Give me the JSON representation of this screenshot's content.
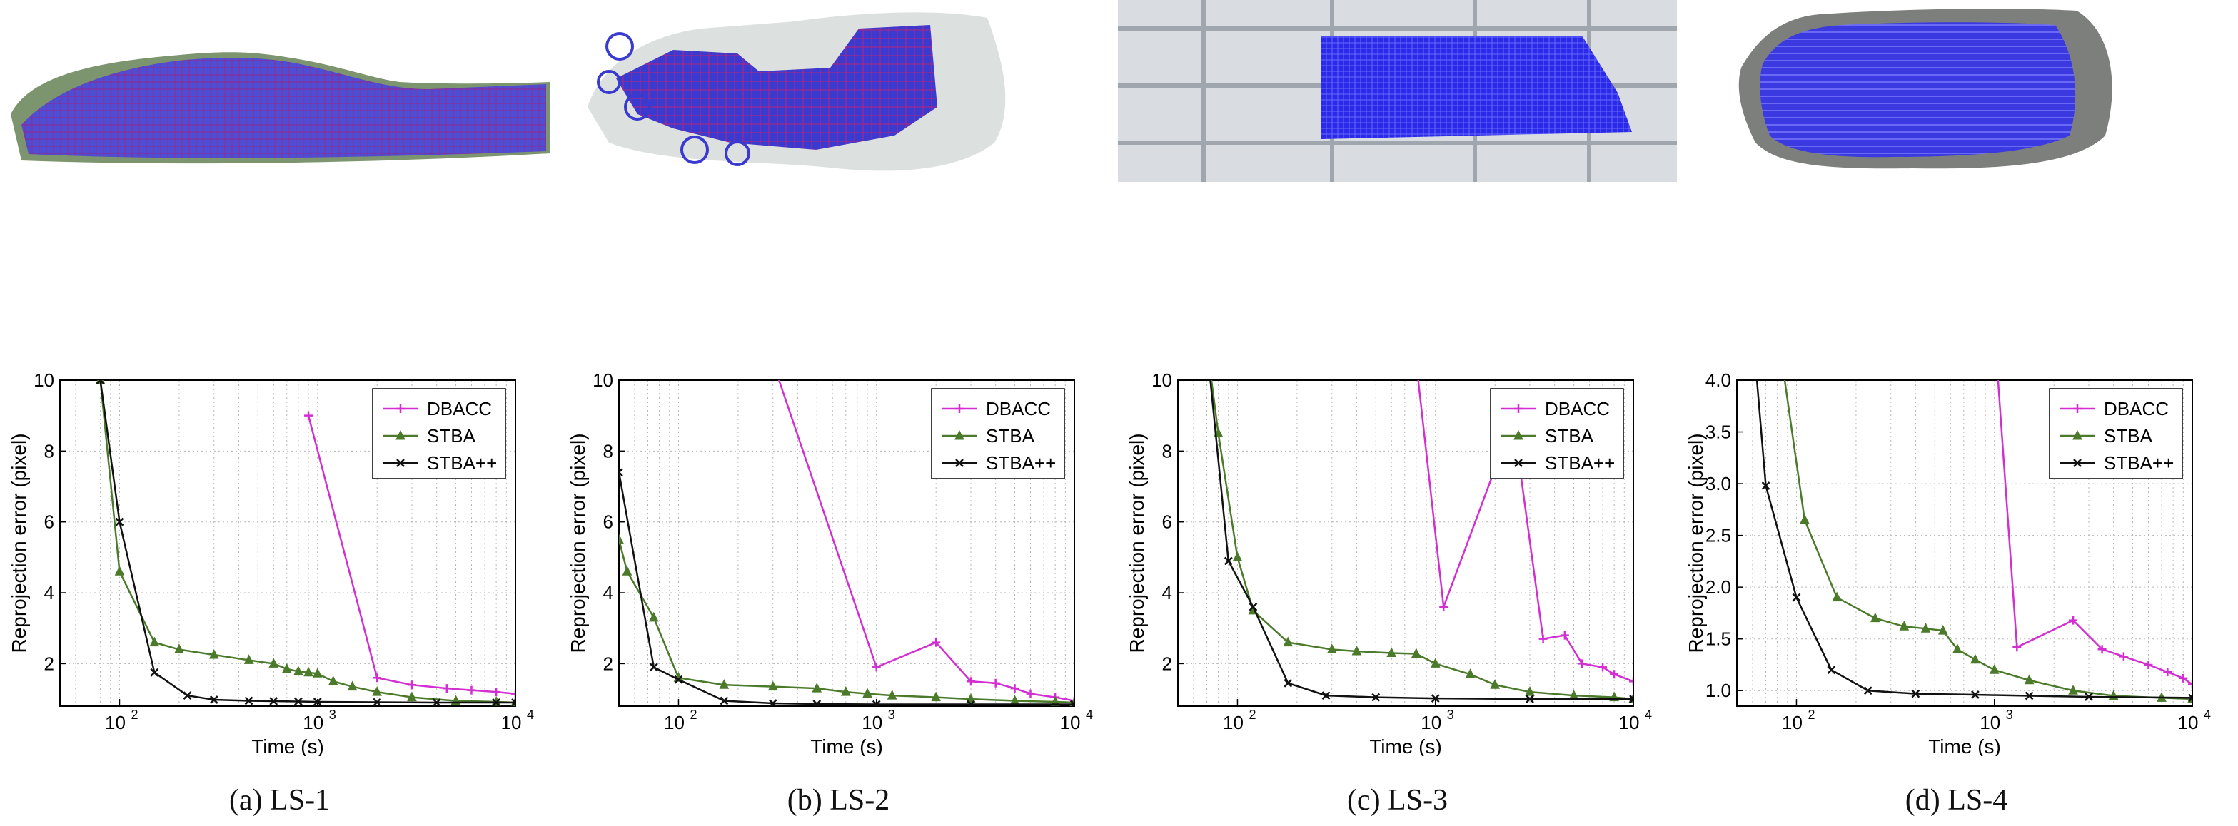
{
  "chart_data": [
    {
      "type": "line",
      "caption": "(a) LS-1",
      "xlabel": "Time (s)",
      "ylabel": "Reprojection error (pixel)",
      "xscale": "log",
      "xlim": [
        50,
        10000
      ],
      "ylim": [
        0.8,
        10
      ],
      "yticks": [
        2,
        4,
        6,
        8,
        10
      ],
      "ytick_labels": [
        "2",
        "4",
        "6",
        "8",
        "10"
      ],
      "xticks": [
        100,
        1000,
        10000
      ],
      "xtick_labels": [
        "10",
        "10",
        "10"
      ],
      "xtick_exps": [
        "2",
        "3",
        "4"
      ],
      "grid": true,
      "legend_position": "top-right",
      "series": [
        {
          "name": "DBACC",
          "color": "#d22ed2",
          "marker": "plus",
          "x": [
            900,
            2000,
            3000,
            4500,
            6000,
            8000,
            10000
          ],
          "y": [
            9.0,
            1.6,
            1.4,
            1.3,
            1.25,
            1.2,
            1.15
          ]
        },
        {
          "name": "STBA",
          "color": "#4a7a2a",
          "marker": "triangle",
          "x": [
            60,
            80,
            100,
            150,
            200,
            300,
            450,
            600,
            700,
            800,
            900,
            1000,
            1200,
            1500,
            2000,
            3000,
            5000,
            8000,
            10000
          ],
          "y": [
            12,
            10,
            4.6,
            2.6,
            2.4,
            2.25,
            2.1,
            2.0,
            1.85,
            1.78,
            1.75,
            1.72,
            1.5,
            1.35,
            1.2,
            1.05,
            0.95,
            0.92,
            0.9
          ]
        },
        {
          "name": "STBA++",
          "color": "#111111",
          "marker": "x",
          "x": [
            60,
            80,
            100,
            150,
            220,
            300,
            450,
            600,
            800,
            1000,
            2000,
            4000,
            8000,
            10000
          ],
          "y": [
            12,
            10,
            6.0,
            1.75,
            1.1,
            0.98,
            0.95,
            0.94,
            0.93,
            0.92,
            0.91,
            0.9,
            0.9,
            0.9
          ]
        }
      ]
    },
    {
      "type": "line",
      "caption": "(b) LS-2",
      "xlabel": "Time (s)",
      "ylabel": "Reprojection error (pixel)",
      "xscale": "log",
      "xlim": [
        50,
        10000
      ],
      "ylim": [
        0.8,
        10
      ],
      "yticks": [
        2,
        4,
        6,
        8,
        10
      ],
      "ytick_labels": [
        "2",
        "4",
        "6",
        "8",
        "10"
      ],
      "xticks": [
        100,
        1000,
        10000
      ],
      "xtick_labels": [
        "10",
        "10",
        "10"
      ],
      "xtick_exps": [
        "2",
        "3",
        "4"
      ],
      "grid": true,
      "legend_position": "top-right",
      "series": [
        {
          "name": "DBACC",
          "color": "#d22ed2",
          "marker": "plus",
          "x": [
            300,
            1000,
            2000,
            3000,
            4000,
            5000,
            6000,
            8000,
            10000
          ],
          "y": [
            10.5,
            1.9,
            2.6,
            1.5,
            1.45,
            1.3,
            1.15,
            1.05,
            0.95
          ]
        },
        {
          "name": "STBA",
          "color": "#4a7a2a",
          "marker": "triangle",
          "x": [
            50,
            55,
            75,
            100,
            170,
            300,
            500,
            700,
            900,
            1200,
            2000,
            3000,
            5000,
            8000,
            10000
          ],
          "y": [
            5.5,
            4.6,
            3.3,
            1.6,
            1.4,
            1.35,
            1.3,
            1.2,
            1.15,
            1.1,
            1.05,
            1.0,
            0.95,
            0.92,
            0.9
          ]
        },
        {
          "name": "STBA++",
          "color": "#111111",
          "marker": "x",
          "x": [
            50,
            75,
            100,
            170,
            300,
            500,
            1000,
            3000,
            10000
          ],
          "y": [
            7.4,
            1.9,
            1.55,
            0.95,
            0.88,
            0.86,
            0.85,
            0.85,
            0.85
          ]
        }
      ]
    },
    {
      "type": "line",
      "caption": "(c) LS-3",
      "xlabel": "Time (s)",
      "ylabel": "Reprojection error (pixel)",
      "xscale": "log",
      "xlim": [
        50,
        10000
      ],
      "ylim": [
        0.8,
        10
      ],
      "yticks": [
        2,
        4,
        6,
        8,
        10
      ],
      "ytick_labels": [
        "2",
        "4",
        "6",
        "8",
        "10"
      ],
      "xticks": [
        100,
        1000,
        10000
      ],
      "xtick_labels": [
        "10",
        "10",
        "10"
      ],
      "xtick_exps": [
        "2",
        "3",
        "4"
      ],
      "grid": true,
      "legend_position": "top-right",
      "series": [
        {
          "name": "DBACC",
          "color": "#d22ed2",
          "marker": "plus",
          "x": [
            800,
            1100,
            2000,
            2600,
            3500,
            4500,
            5500,
            7000,
            8000,
            10000
          ],
          "y": [
            10.5,
            3.6,
            7.5,
            8.0,
            2.7,
            2.8,
            2.0,
            1.9,
            1.7,
            1.5
          ]
        },
        {
          "name": "STBA",
          "color": "#4a7a2a",
          "marker": "triangle",
          "x": [
            70,
            80,
            100,
            120,
            180,
            300,
            400,
            600,
            800,
            1000,
            1500,
            2000,
            3000,
            5000,
            8000,
            10000
          ],
          "y": [
            11,
            8.5,
            5.0,
            3.5,
            2.6,
            2.4,
            2.35,
            2.3,
            2.28,
            2.0,
            1.7,
            1.4,
            1.2,
            1.1,
            1.05,
            1.0
          ]
        },
        {
          "name": "STBA++",
          "color": "#111111",
          "marker": "x",
          "x": [
            70,
            90,
            120,
            180,
            280,
            500,
            1000,
            3000,
            10000
          ],
          "y": [
            11,
            4.9,
            3.6,
            1.45,
            1.1,
            1.05,
            1.02,
            1.0,
            1.0
          ]
        }
      ]
    },
    {
      "type": "line",
      "caption": "(d) LS-4",
      "xlabel": "Time (s)",
      "ylabel": "Reprojection error (pixel)",
      "xscale": "log",
      "xlim": [
        50,
        10000
      ],
      "ylim": [
        0.85,
        4.0
      ],
      "yticks": [
        1.0,
        1.5,
        2.0,
        2.5,
        3.0,
        3.5,
        4.0
      ],
      "ytick_labels": [
        "1.0",
        "1.5",
        "2.0",
        "2.5",
        "3.0",
        "3.5",
        "4.0"
      ],
      "xticks": [
        100,
        1000,
        10000
      ],
      "xtick_labels": [
        "10",
        "10",
        "10"
      ],
      "xtick_exps": [
        "2",
        "3",
        "4"
      ],
      "grid": true,
      "legend_position": "top-right",
      "series": [
        {
          "name": "DBACC",
          "color": "#d22ed2",
          "marker": "plus",
          "x": [
            1000,
            1300,
            2500,
            3500,
            4500,
            6000,
            7500,
            9000,
            10000
          ],
          "y": [
            4.5,
            1.42,
            1.68,
            1.4,
            1.33,
            1.25,
            1.18,
            1.12,
            1.06
          ]
        },
        {
          "name": "STBA",
          "color": "#4a7a2a",
          "marker": "triangle",
          "x": [
            80,
            110,
            160,
            250,
            350,
            450,
            550,
            650,
            800,
            1000,
            1500,
            2500,
            4000,
            7000,
            10000
          ],
          "y": [
            4.5,
            2.65,
            1.9,
            1.7,
            1.62,
            1.6,
            1.58,
            1.4,
            1.3,
            1.2,
            1.1,
            1.0,
            0.95,
            0.93,
            0.92
          ]
        },
        {
          "name": "STBA++",
          "color": "#111111",
          "marker": "x",
          "x": [
            60,
            70,
            100,
            150,
            230,
            400,
            800,
            1500,
            3000,
            10000
          ],
          "y": [
            4.5,
            2.98,
            1.9,
            1.2,
            1.0,
            0.97,
            0.96,
            0.95,
            0.94,
            0.93
          ]
        }
      ]
    }
  ]
}
